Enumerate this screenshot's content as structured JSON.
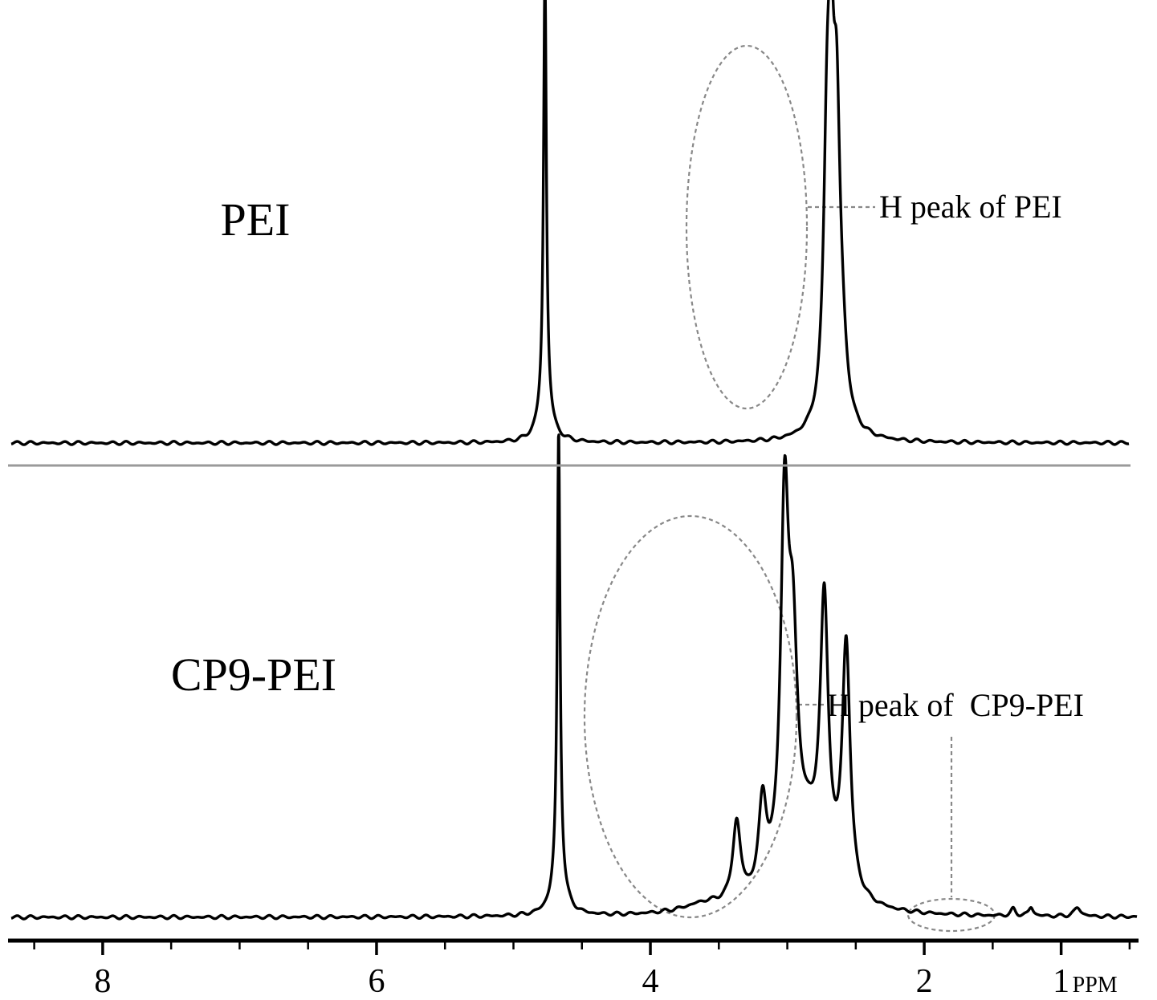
{
  "chart_data": {
    "type": "line",
    "title": "",
    "x_unit": "PPM",
    "xlabel": "",
    "xlim": [
      8.75,
      0.3
    ],
    "x_reversed": true,
    "x_ticks": [
      8,
      6,
      4,
      2,
      1
    ],
    "x_tick_labels": [
      "8",
      "6",
      "4",
      "2",
      "1"
    ],
    "grid": false,
    "legend": "none",
    "line_color": "#000000",
    "annotation_color": "#888888",
    "panels": [
      {
        "name": "PEI",
        "label": "PEI",
        "annotation": "H peak of PEI",
        "peaks": [
          {
            "center": 4.77,
            "height": 1.0,
            "width": 0.012
          },
          {
            "center": 4.77,
            "height": 0.1,
            "width": 0.05
          },
          {
            "center": 2.71,
            "height": 0.56,
            "width": 0.03
          },
          {
            "center": 2.68,
            "height": 0.58,
            "width": 0.025
          },
          {
            "center": 2.64,
            "height": 0.6,
            "width": 0.03
          },
          {
            "center": 2.6,
            "height": 0.12,
            "width": 0.04
          },
          {
            "center": 2.66,
            "height": 0.03,
            "width": 0.12
          }
        ]
      },
      {
        "name": "CP9-PEI",
        "label": "CP9-PEI",
        "annotation": "H peak of  CP9-PEI",
        "peaks": [
          {
            "center": 4.67,
            "height": 1.0,
            "width": 0.012
          },
          {
            "center": 4.67,
            "height": 0.1,
            "width": 0.05
          },
          {
            "center": 3.37,
            "height": 0.18,
            "width": 0.035
          },
          {
            "center": 3.18,
            "height": 0.2,
            "width": 0.035
          },
          {
            "center": 3.02,
            "height": 0.8,
            "width": 0.035
          },
          {
            "center": 2.96,
            "height": 0.45,
            "width": 0.04
          },
          {
            "center": 2.73,
            "height": 0.6,
            "width": 0.035
          },
          {
            "center": 2.57,
            "height": 0.56,
            "width": 0.035
          },
          {
            "center": 2.85,
            "height": 0.16,
            "width": 0.16
          },
          {
            "center": 3.6,
            "height": 0.02,
            "width": 0.2
          },
          {
            "center": 1.35,
            "height": 0.015,
            "width": 0.02
          },
          {
            "center": 1.22,
            "height": 0.02,
            "width": 0.02
          },
          {
            "center": 0.88,
            "height": 0.02,
            "width": 0.03
          }
        ]
      }
    ]
  }
}
